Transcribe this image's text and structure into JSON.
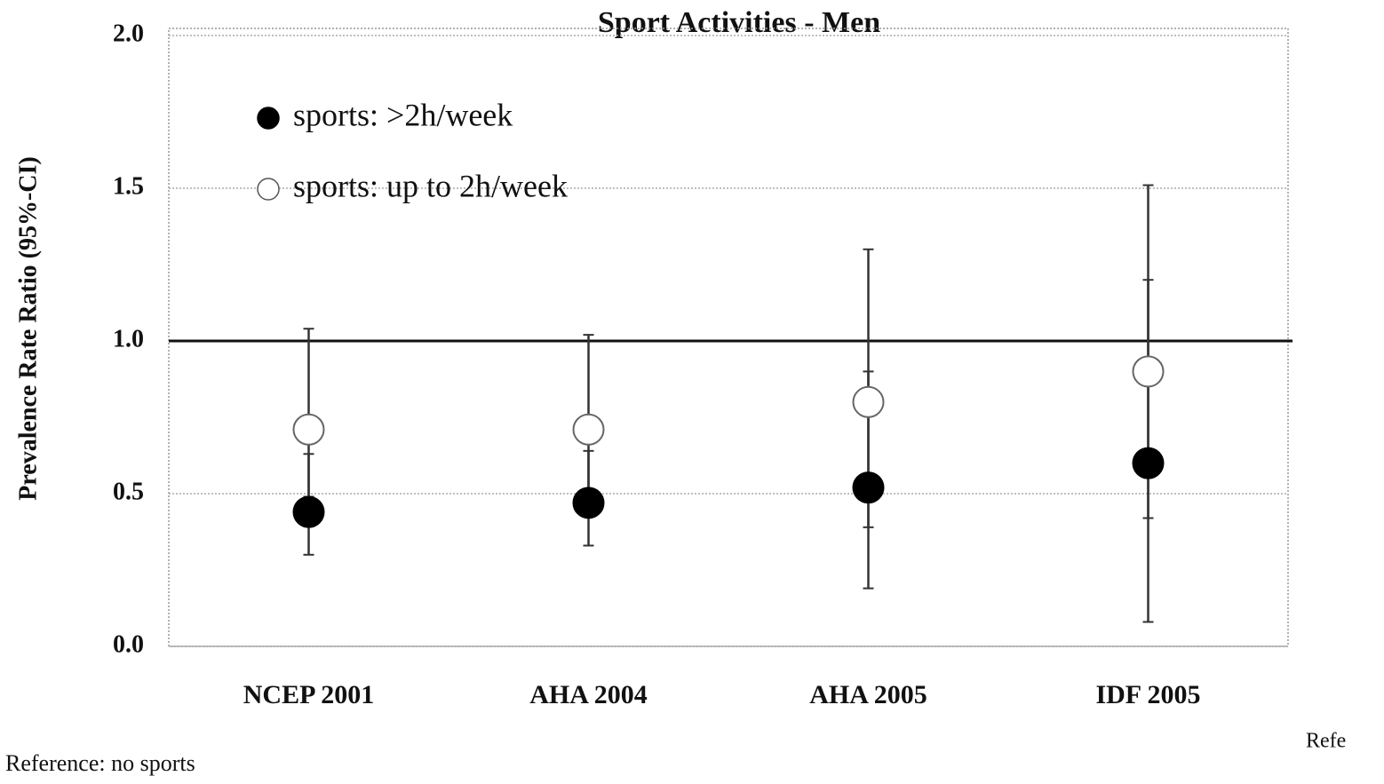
{
  "chart_data": {
    "type": "errorbar",
    "title": "Sport Activities - Men",
    "y_label": "Prevalence Rate Ratio (95%-CI)",
    "categories": [
      "NCEP 2001",
      "AHA 2004",
      "AHA 2005",
      "IDF 2005"
    ],
    "series": [
      {
        "name": "sports: >2h/week",
        "color": "#000000",
        "filled": true,
        "values": [
          0.44,
          0.47,
          0.52,
          0.6
        ],
        "lower": [
          0.3,
          0.33,
          0.19,
          0.08
        ],
        "upper": [
          0.63,
          0.64,
          0.9,
          1.2
        ]
      },
      {
        "name": "sports: up to 2h/week",
        "color": "#ffffff",
        "filled": false,
        "values": [
          0.71,
          0.71,
          0.8,
          0.9
        ],
        "lower": [
          0.49,
          0.5,
          0.39,
          0.42
        ],
        "upper": [
          1.04,
          1.02,
          1.3,
          1.51
        ]
      }
    ],
    "ylim": [
      0,
      2
    ],
    "yticks": [
      {
        "value": 0,
        "label": "0.0"
      },
      {
        "value": 0.5,
        "label": "0.5"
      },
      {
        "value": 1,
        "label": "1.0"
      },
      {
        "value": 1.5,
        "label": "1.5"
      },
      {
        "value": 2,
        "label": "2.0"
      }
    ],
    "reference_line": 1,
    "grid": true,
    "legend": "upper left",
    "footnote": "Reference: no sports",
    "annotation": "Refe"
  }
}
